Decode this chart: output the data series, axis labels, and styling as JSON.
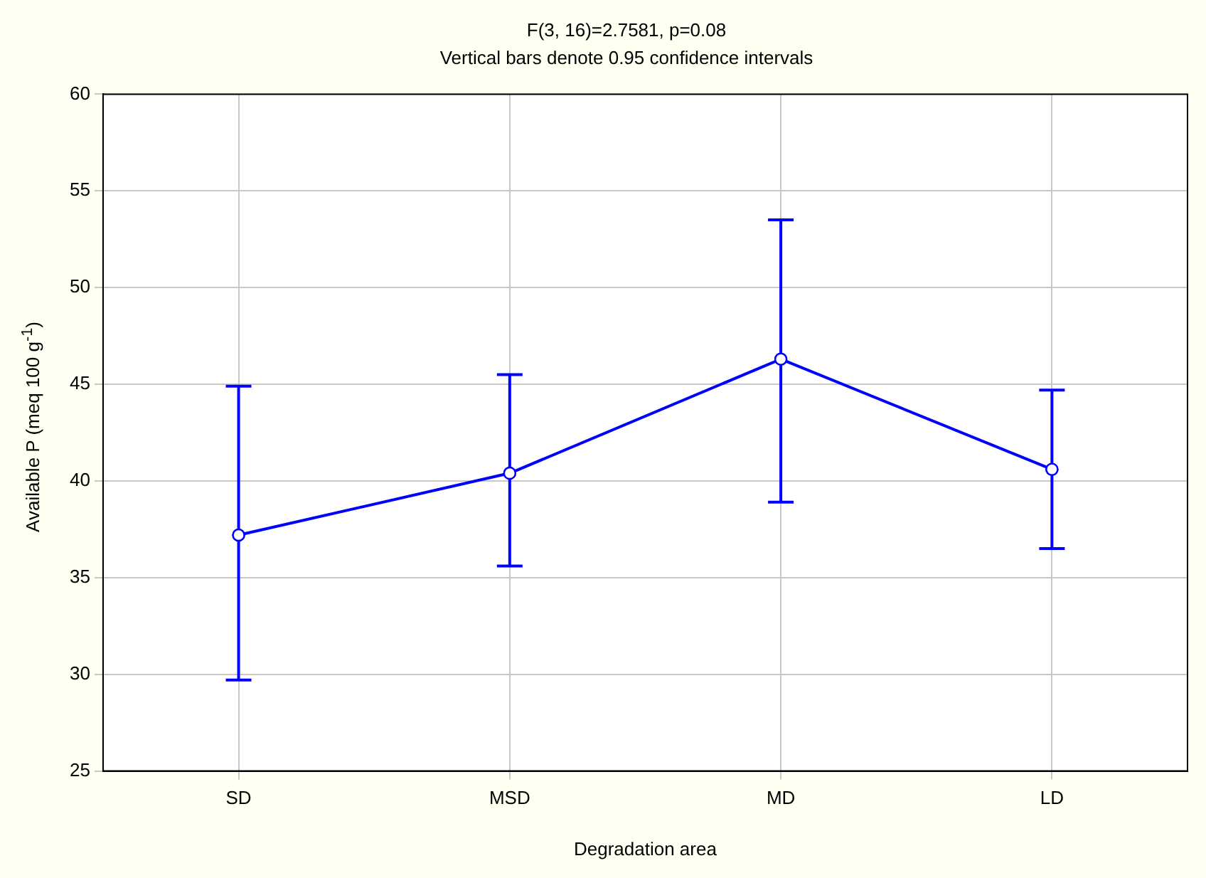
{
  "chart_data": {
    "type": "line",
    "title": "F(3, 16)=2.7581, p=0.08",
    "subtitle": "Vertical bars denote 0.95 confidence intervals",
    "xlabel": "Degradation area",
    "ylabel": "Available P (meq 100 g$^{-1}$)",
    "categories": [
      "SD",
      "MSD",
      "MD",
      "LD"
    ],
    "series": [
      {
        "color": "#0000ff",
        "values": [
          37.2,
          40.4,
          46.3,
          40.6
        ],
        "errors": [
          [
            29.7,
            44.9
          ],
          [
            35.6,
            45.5
          ],
          [
            38.9,
            53.5
          ],
          [
            36.5,
            44.7
          ]
        ]
      }
    ],
    "ylim": [
      25,
      60
    ],
    "yticks": [
      25,
      30,
      35,
      40,
      45,
      50,
      55,
      60
    ],
    "grid": true,
    "marker": "circle",
    "line_style": "solid"
  }
}
